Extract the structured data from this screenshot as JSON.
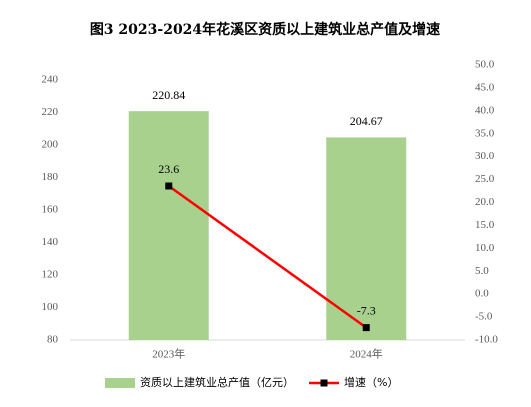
{
  "chart_data": {
    "type": "bar",
    "title": "图3 2023-2024年花溪区资质以上建筑业总产值及增速",
    "categories": [
      "2023年",
      "2024年"
    ],
    "series": [
      {
        "name": "资质以上建筑业总产值（亿元）",
        "type": "bar",
        "color": "#a9d18e",
        "values": [
          220.84,
          204.67
        ]
      },
      {
        "name": "增速（%）",
        "type": "line",
        "color": "#ff0000",
        "marker_color": "#000000",
        "axis": "y2",
        "values": [
          23.6,
          -7.3
        ]
      }
    ],
    "ylim": [
      80,
      240
    ],
    "yticks": [
      80,
      100,
      120,
      140,
      160,
      180,
      200,
      220,
      240
    ],
    "y2lim": [
      -10,
      50
    ],
    "y2ticks": [
      {
        "value": -10,
        "label": "-10.0"
      },
      {
        "value": -5,
        "label": "-5.0"
      },
      {
        "value": 0,
        "label": "0.0"
      },
      {
        "value": 5,
        "label": "5.0"
      },
      {
        "value": 10,
        "label": "10.0"
      },
      {
        "value": 15,
        "label": "15.0"
      },
      {
        "value": 20,
        "label": "20.0"
      },
      {
        "value": 25,
        "label": "25.0"
      },
      {
        "value": 30,
        "label": "30.0"
      },
      {
        "value": 35,
        "label": "35.0"
      },
      {
        "value": 40,
        "label": "40.0"
      },
      {
        "value": 45,
        "label": "45.0"
      },
      {
        "value": 50,
        "label": "50.0"
      }
    ],
    "grid": false,
    "legend": "bottom"
  }
}
